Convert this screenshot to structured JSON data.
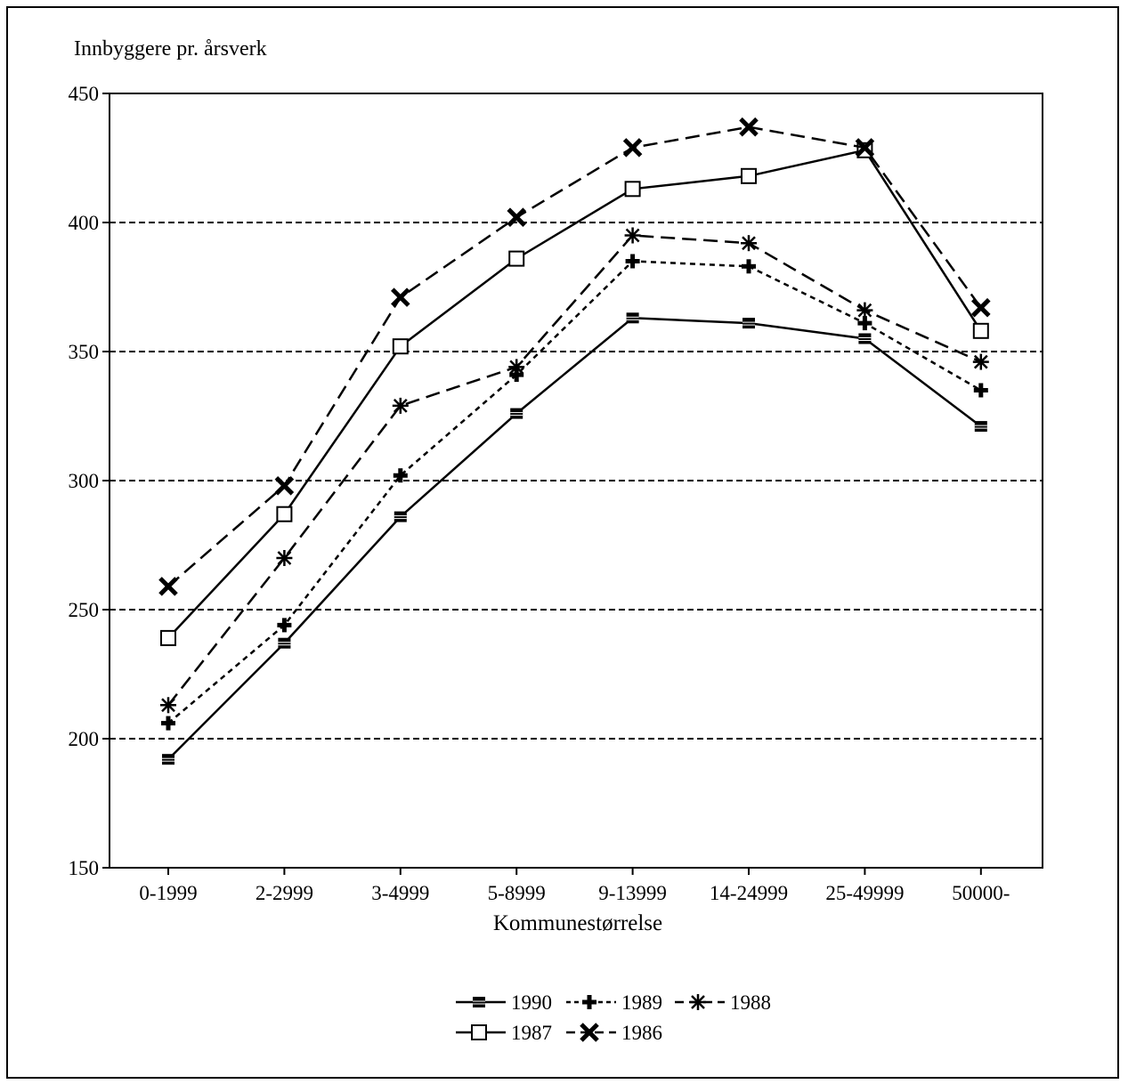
{
  "chart_data": {
    "type": "line",
    "title": "",
    "ylabel": "Innbyggere pr. årsverk",
    "xlabel": "Kommunestørrelse",
    "categories": [
      "0-1999",
      "2-2999",
      "3-4999",
      "5-8999",
      "9-13999",
      "14-24999",
      "25-49999",
      "50000-"
    ],
    "ylim": [
      150,
      450
    ],
    "yticks": [
      150,
      200,
      250,
      300,
      350,
      400,
      450
    ],
    "grid": "horizontal dashed",
    "legend_position": "bottom-center",
    "series": [
      {
        "name": "1990",
        "line": "solid",
        "marker": "filled-square",
        "values": [
          192,
          237,
          286,
          326,
          363,
          361,
          355,
          321
        ]
      },
      {
        "name": "1989",
        "line": "dotted",
        "marker": "plus",
        "values": [
          206,
          244,
          302,
          341,
          385,
          383,
          361,
          335
        ]
      },
      {
        "name": "1988",
        "line": "dashed",
        "marker": "asterisk",
        "values": [
          213,
          270,
          329,
          344,
          395,
          392,
          366,
          346
        ]
      },
      {
        "name": "1987",
        "line": "solid",
        "marker": "open-square",
        "values": [
          239,
          287,
          352,
          386,
          413,
          418,
          428,
          358
        ]
      },
      {
        "name": "1986",
        "line": "dashed",
        "marker": "x-cross",
        "values": [
          259,
          298,
          371,
          402,
          429,
          437,
          429,
          367
        ]
      }
    ]
  }
}
